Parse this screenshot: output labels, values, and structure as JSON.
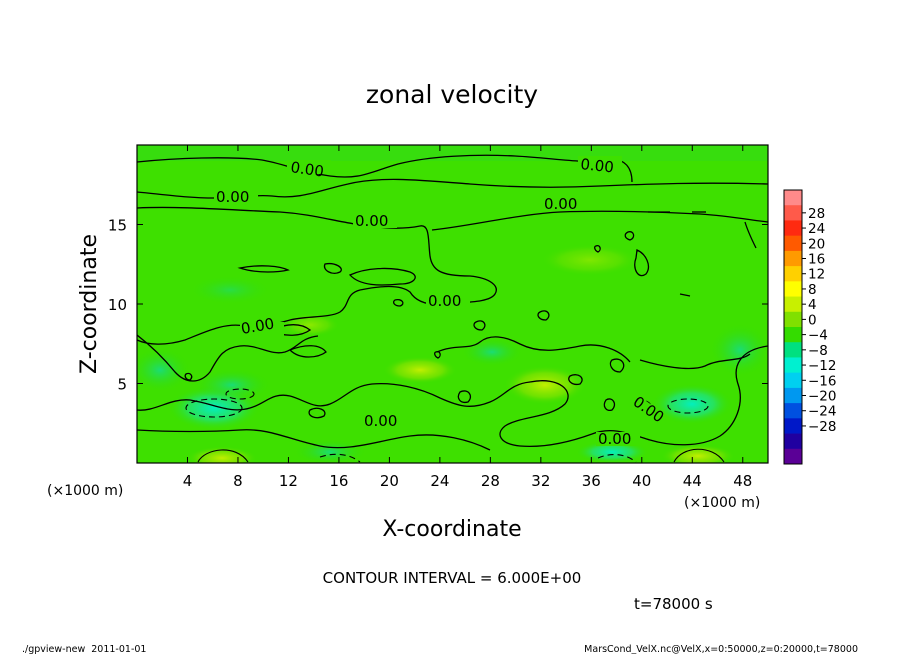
{
  "chart_data": {
    "type": "heatmap",
    "title": "zonal velocity",
    "xlabel": "X-coordinate",
    "ylabel": "Z-coordinate",
    "x_unit": "(×1000 m)",
    "y_unit": "(×1000 m)",
    "xlim": [
      0,
      50
    ],
    "ylim": [
      0,
      20
    ],
    "x_ticks": [
      "4",
      "8",
      "12",
      "16",
      "20",
      "24",
      "28",
      "32",
      "36",
      "40",
      "44",
      "48"
    ],
    "y_ticks": [
      "5",
      "10",
      "15"
    ],
    "colorbar": {
      "labels": [
        "28",
        "24",
        "20",
        "16",
        "12",
        "8",
        "4",
        "0",
        "−4",
        "−8",
        "−12",
        "−16",
        "−20",
        "−24",
        "−28"
      ],
      "colors": [
        "#ff8a8a",
        "#ff5a4a",
        "#ff2a10",
        "#ff5a00",
        "#ff9a00",
        "#ffd000",
        "#ffff00",
        "#c8f000",
        "#80e000",
        "#34dc00",
        "#00e080",
        "#00f0d0",
        "#00d0f0",
        "#0098f0",
        "#0050e0",
        "#0018c8",
        "#2000a0",
        "#5a0096"
      ]
    },
    "contour_labels": [
      "0.00",
      "0.00",
      "0.00",
      "0.00",
      "0.00",
      "0.00",
      "0.00",
      "0.00",
      "0.00",
      "0.00",
      "0.00"
    ],
    "contour_interval": "CONTOUR INTERVAL = 6.000E+00",
    "time_label": "t=78000 s"
  },
  "footer": {
    "left": "./gpview-new  2011-01-01",
    "right": "MarsCond_VelX.nc@VelX,x=0:50000,z=0:20000,t=78000"
  }
}
